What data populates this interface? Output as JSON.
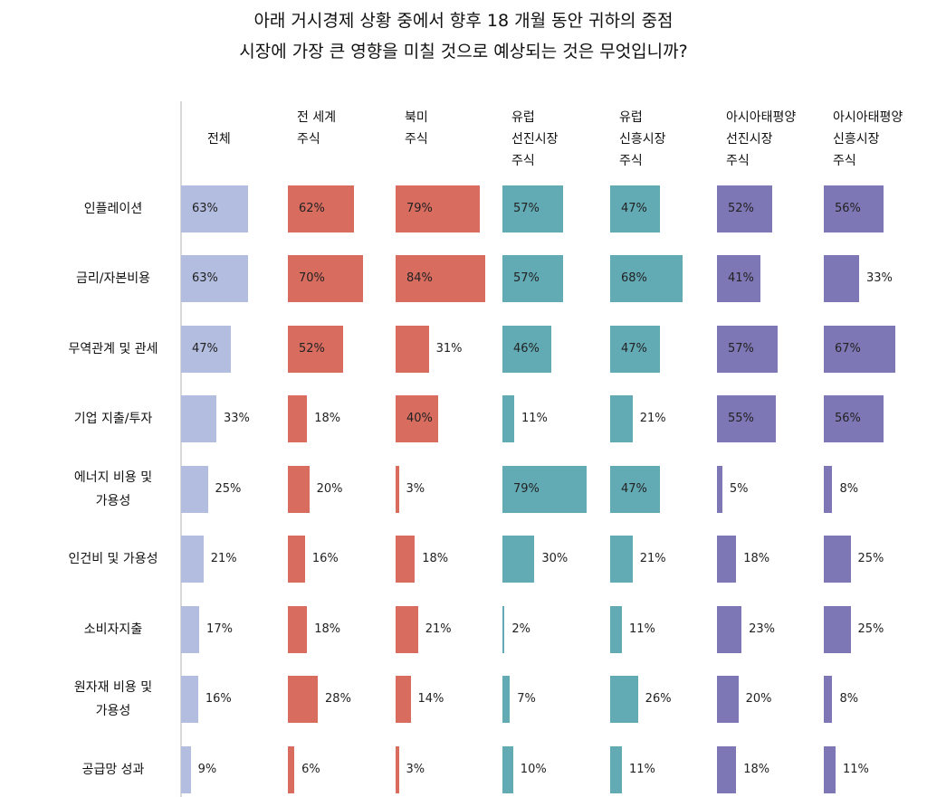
{
  "chart_data": {
    "type": "bar",
    "title": [
      "아래 거시경제 상황 중에서 향후 18 개월 동안 귀하의 중점",
      "시장에 가장 큰 영향을 미칠 것으로 예상되는 것은 무엇입니까?"
    ],
    "categories": [
      "인플레이션",
      "금리/자본비용",
      "무역관계 및 관세",
      "기업 지출/투자",
      "에너지 비용 및\n가용성",
      "인건비 및 가용성",
      "소비자지출",
      "원자재 비용 및\n가용성",
      "공급망 성과"
    ],
    "series": [
      {
        "name": "전체",
        "color": "#b3bde0",
        "values": [
          63,
          63,
          47,
          33,
          25,
          21,
          17,
          16,
          9
        ]
      },
      {
        "name": "전 세계\n주식",
        "color": "#d76c5f",
        "values": [
          62,
          70,
          52,
          18,
          20,
          16,
          18,
          28,
          6
        ]
      },
      {
        "name": "북미\n주식",
        "color": "#d76c5f",
        "values": [
          79,
          84,
          31,
          40,
          3,
          18,
          21,
          14,
          3
        ]
      },
      {
        "name": "유럽\n선진시장\n주식",
        "color": "#62abb5",
        "values": [
          57,
          57,
          46,
          11,
          79,
          30,
          2,
          7,
          10
        ]
      },
      {
        "name": "유럽\n신흥시장\n주식",
        "color": "#62abb5",
        "values": [
          47,
          68,
          47,
          21,
          47,
          21,
          11,
          26,
          11
        ]
      },
      {
        "name": "아시아태평양\n선진시장\n주식",
        "color": "#7d77b6",
        "values": [
          52,
          41,
          57,
          55,
          5,
          18,
          23,
          20,
          18
        ]
      },
      {
        "name": "아시아태평양\n신흥시장\n주식",
        "color": "#7d77b6",
        "values": [
          56,
          33,
          67,
          56,
          8,
          25,
          25,
          8,
          11
        ]
      }
    ],
    "unit": "%",
    "xlim": [
      0,
      100
    ]
  }
}
